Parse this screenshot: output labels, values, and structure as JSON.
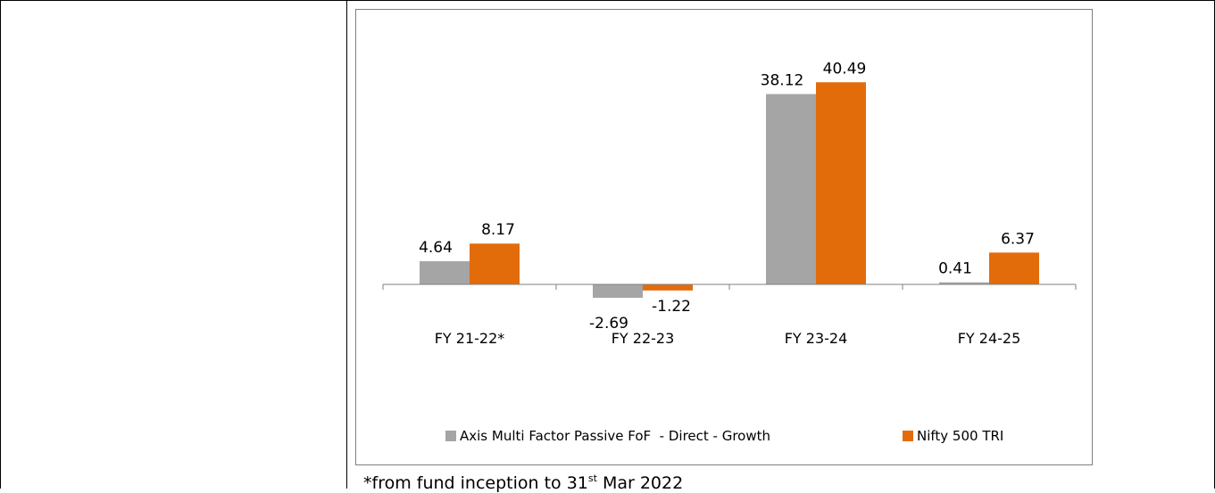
{
  "chart_data": {
    "type": "bar",
    "categories": [
      "FY 21-22*",
      "FY 22-23",
      "FY 23-24",
      "FY 24-25"
    ],
    "series": [
      {
        "name": "Axis Multi Factor Passive FoF  - Direct - Growth",
        "color": "#a5a5a5",
        "values": [
          4.64,
          -2.69,
          38.12,
          0.41
        ]
      },
      {
        "name": "Nifty 500 TRI",
        "color": "#e36c0a",
        "values": [
          8.17,
          -1.22,
          40.49,
          6.37
        ]
      }
    ],
    "data_labels": [
      [
        "4.64",
        "-2.69",
        "38.12",
        "0.41"
      ],
      [
        "8.17",
        "-1.22",
        "40.49",
        "6.37"
      ]
    ],
    "ylim": [
      -12,
      43
    ],
    "grid": false,
    "legend_position": "bottom"
  },
  "footnote": {
    "prefix": "*from fund inception to 31",
    "sup": "st",
    "suffix": " Mar 2022"
  }
}
